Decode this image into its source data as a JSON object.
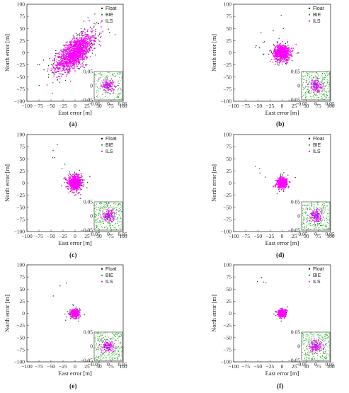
{
  "chart_data": [
    {
      "panel": "(a)",
      "type": "scatter",
      "xlabel": "East error [m]",
      "ylabel": "North error [m]",
      "xlim": [
        -100,
        100
      ],
      "ylim": [
        -100,
        100
      ],
      "xticks": [
        "−100",
        "−75",
        "−50",
        "−25",
        "0",
        "25",
        "50",
        "75",
        "100"
      ],
      "yticks": [
        "100",
        "75",
        "50",
        "25",
        "0",
        "−25",
        "−50",
        "−75",
        "−100"
      ],
      "legend": [
        "Float",
        "BIE",
        "ILS"
      ],
      "legend_position": "top-right",
      "series": [
        {
          "name": "Float",
          "color": "#000000",
          "spread_m": [
            30,
            30
          ],
          "correlation": 0.65
        },
        {
          "name": "BIE",
          "color": "#00aa00",
          "spread_m": [
            20,
            20
          ],
          "correlation": 0.65
        },
        {
          "name": "ILS",
          "color": "#ff00ff",
          "spread_m": [
            18,
            18
          ],
          "correlation": 0.65
        }
      ],
      "inset": {
        "xlim": [
          -0.05,
          0.05
        ],
        "ylim": [
          -0.05,
          0.05
        ],
        "xticks": [
          "−0.05",
          "0",
          "0.05"
        ],
        "yticks": [
          "0.05",
          "0",
          "−0.05"
        ],
        "position": "bottom-right"
      }
    },
    {
      "panel": "(b)",
      "type": "scatter",
      "xlabel": "East error [m]",
      "ylabel": "North error [m]",
      "xlim": [
        -100,
        100
      ],
      "ylim": [
        -100,
        100
      ],
      "xticks": [
        "−100",
        "−75",
        "−50",
        "−25",
        "0",
        "25",
        "50",
        "75",
        "100"
      ],
      "yticks": [
        "100",
        "75",
        "50",
        "25",
        "0",
        "−25",
        "−50",
        "−75",
        "−100"
      ],
      "legend": [
        "Float",
        "BIE",
        "ILS"
      ],
      "legend_position": "top-right",
      "series": [
        {
          "name": "Float",
          "color": "#000000",
          "spread_m": [
            13,
            12
          ]
        },
        {
          "name": "BIE",
          "color": "#00aa00",
          "spread_m": [
            9,
            9
          ]
        },
        {
          "name": "ILS",
          "color": "#ff00ff",
          "spread_m": [
            8,
            8
          ]
        }
      ],
      "inset": {
        "xlim": [
          -0.05,
          0.05
        ],
        "ylim": [
          -0.05,
          0.05
        ],
        "xticks": [
          "−0.05",
          "0",
          "0.05"
        ],
        "yticks": [
          "0.05",
          "0",
          "−0.05"
        ],
        "position": "bottom-right"
      }
    },
    {
      "panel": "(c)",
      "type": "scatter",
      "xlabel": "East error [m]",
      "ylabel": "North error [m]",
      "xlim": [
        -100,
        100
      ],
      "ylim": [
        -100,
        100
      ],
      "xticks": [
        "−100",
        "−75",
        "−50",
        "−25",
        "0",
        "25",
        "50",
        "75",
        "100"
      ],
      "yticks": [
        "100",
        "75",
        "50",
        "25",
        "0",
        "−25",
        "−50",
        "−75",
        "−100"
      ],
      "legend": [
        "Float",
        "BIE",
        "ILS"
      ],
      "legend_position": "top-right",
      "series": [
        {
          "name": "Float",
          "color": "#000000",
          "spread_m": [
            12,
            11
          ]
        },
        {
          "name": "BIE",
          "color": "#00aa00",
          "spread_m": [
            8,
            8
          ]
        },
        {
          "name": "ILS",
          "color": "#ff00ff",
          "spread_m": [
            7,
            7
          ]
        }
      ],
      "inset": {
        "xlim": [
          -0.05,
          0.05
        ],
        "ylim": [
          -0.05,
          0.05
        ],
        "xticks": [
          "−0.05",
          "0",
          "0.05"
        ],
        "yticks": [
          "0.05",
          "0",
          "−0.05"
        ],
        "position": "bottom-right"
      }
    },
    {
      "panel": "(d)",
      "type": "scatter",
      "xlabel": "East error [m]",
      "ylabel": "North error [m]",
      "xlim": [
        -100,
        100
      ],
      "ylim": [
        -100,
        100
      ],
      "xticks": [
        "−100",
        "−75",
        "−50",
        "−25",
        "0",
        "25",
        "50",
        "75",
        "100"
      ],
      "yticks": [
        "100",
        "75",
        "50",
        "25",
        "0",
        "−25",
        "−50",
        "−75",
        "−100"
      ],
      "legend": [
        "Float",
        "BIE",
        "ILS"
      ],
      "legend_position": "top-right",
      "series": [
        {
          "name": "Float",
          "color": "#000000",
          "spread_m": [
            8,
            8
          ]
        },
        {
          "name": "BIE",
          "color": "#00aa00",
          "spread_m": [
            6,
            6
          ]
        },
        {
          "name": "ILS",
          "color": "#ff00ff",
          "spread_m": [
            5,
            5
          ]
        }
      ],
      "inset": {
        "xlim": [
          -0.05,
          0.05
        ],
        "ylim": [
          -0.05,
          0.05
        ],
        "xticks": [
          "−0.05",
          "0",
          "0.05"
        ],
        "yticks": [
          "0.05",
          "0",
          "−0.05"
        ],
        "position": "bottom-right"
      }
    },
    {
      "panel": "(e)",
      "type": "scatter",
      "xlabel": "East error [m]",
      "ylabel": "North error [m]",
      "xlim": [
        -100,
        100
      ],
      "ylim": [
        -100,
        100
      ],
      "xticks": [
        "−100",
        "−75",
        "−50",
        "−25",
        "0",
        "25",
        "50",
        "75",
        "100"
      ],
      "yticks": [
        "100",
        "75",
        "50",
        "25",
        "0",
        "−25",
        "−50",
        "−75",
        "−100"
      ],
      "legend": [
        "Float",
        "BIE",
        "ILS"
      ],
      "legend_position": "top-right",
      "series": [
        {
          "name": "Float",
          "color": "#000000",
          "spread_m": [
            7,
            7
          ]
        },
        {
          "name": "BIE",
          "color": "#00aa00",
          "spread_m": [
            5,
            5
          ]
        },
        {
          "name": "ILS",
          "color": "#ff00ff",
          "spread_m": [
            4,
            4
          ]
        }
      ],
      "inset": {
        "xlim": [
          -0.05,
          0.05
        ],
        "ylim": [
          -0.05,
          0.05
        ],
        "xticks": [
          "−0.05",
          "0",
          "0.05"
        ],
        "yticks": [
          "0.05",
          "0",
          "−0.05"
        ],
        "position": "bottom-right"
      }
    },
    {
      "panel": "(f)",
      "type": "scatter",
      "xlabel": "East error [m]",
      "ylabel": "North error [m]",
      "xlim": [
        -100,
        100
      ],
      "ylim": [
        -100,
        100
      ],
      "xticks": [
        "−100",
        "−75",
        "−50",
        "−25",
        "0",
        "25",
        "50",
        "75",
        "100"
      ],
      "yticks": [
        "100",
        "75",
        "50",
        "25",
        "0",
        "−25",
        "−50",
        "−75",
        "−100"
      ],
      "legend": [
        "Float",
        "BIE",
        "ILS"
      ],
      "legend_position": "top-right",
      "series": [
        {
          "name": "Float",
          "color": "#000000",
          "spread_m": [
            6,
            6
          ]
        },
        {
          "name": "BIE",
          "color": "#00aa00",
          "spread_m": [
            4,
            4
          ]
        },
        {
          "name": "ILS",
          "color": "#ff00ff",
          "spread_m": [
            4,
            4
          ]
        }
      ],
      "inset": {
        "xlim": [
          -0.05,
          0.05
        ],
        "ylim": [
          -0.05,
          0.05
        ],
        "xticks": [
          "−0.05",
          "0",
          "0.05"
        ],
        "yticks": [
          "0.05",
          "0",
          "−0.05"
        ],
        "position": "bottom-right"
      }
    }
  ]
}
